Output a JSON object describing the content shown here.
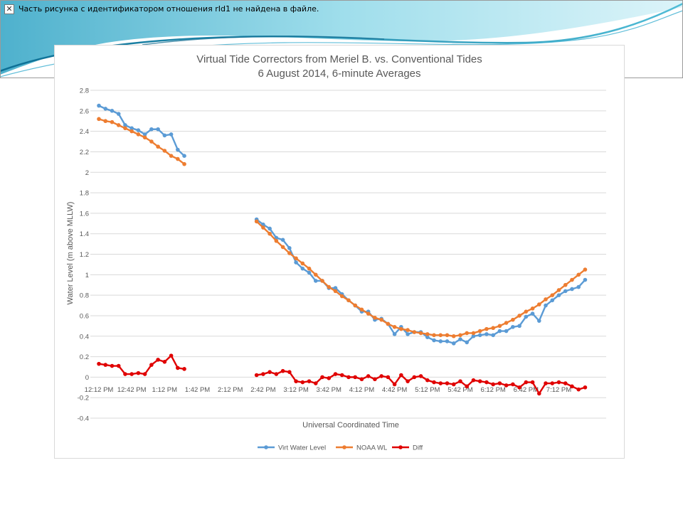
{
  "placeholder": {
    "icon": "broken-image-icon",
    "message": "Часть рисунка с идентификатором отношения rId1 не найдена в файле."
  },
  "colors": {
    "virt": "#5B9BD5",
    "noaa": "#ED7D31",
    "diff": "#E00000",
    "grid": "#d9d9d9",
    "text": "#595959"
  },
  "chart_data": {
    "type": "line",
    "title": "Virtual Tide Correctors from Meriel B. vs. Conventional Tides",
    "subtitle": "6 August 2014, 6-minute Averages",
    "xlabel": "Universal Coordinated Time",
    "ylabel": "Water Level (m above MLLW)",
    "ylim": [
      -0.4,
      2.8
    ],
    "yticks": [
      "2.8",
      "2.6",
      "2.4",
      "2.2",
      "2",
      "1.8",
      "1.6",
      "1.4",
      "1.2",
      "1",
      "0.8",
      "0.6",
      "0.4",
      "0.2",
      "0",
      "-0.2",
      "-0.4"
    ],
    "x_start": "12:12 PM",
    "x_step_minutes": 6,
    "x_tick_labels": [
      "12:12 PM",
      "12:42 PM",
      "1:12 PM",
      "1:42 PM",
      "2:12 PM",
      "2:42 PM",
      "3:12 PM",
      "3:42 PM",
      "4:12 PM",
      "4:42 PM",
      "5:12 PM",
      "5:42 PM",
      "6:12 PM",
      "6:42 PM",
      "7:12 PM"
    ],
    "grid": true,
    "legend_position": "bottom",
    "series": [
      {
        "name": "Virt Water Level",
        "values": [
          2.65,
          2.62,
          2.6,
          2.57,
          2.46,
          2.43,
          2.41,
          2.37,
          2.42,
          2.42,
          2.36,
          2.37,
          2.22,
          2.16,
          null,
          null,
          null,
          null,
          null,
          null,
          null,
          null,
          null,
          null,
          1.54,
          1.49,
          1.45,
          1.36,
          1.34,
          1.26,
          1.12,
          1.06,
          1.02,
          0.94,
          0.94,
          0.87,
          0.87,
          0.81,
          0.75,
          0.7,
          0.64,
          0.64,
          0.56,
          0.57,
          0.52,
          0.42,
          0.49,
          0.42,
          0.44,
          0.44,
          0.39,
          0.36,
          0.35,
          0.35,
          0.33,
          0.37,
          0.34,
          0.4,
          0.41,
          0.42,
          0.41,
          0.45,
          0.45,
          0.49,
          0.5,
          0.59,
          0.62,
          0.55,
          0.7,
          0.75,
          0.8,
          0.84,
          0.86,
          0.88,
          0.95
        ]
      },
      {
        "name": "NOAA WL",
        "values": [
          2.52,
          2.5,
          2.49,
          2.46,
          2.43,
          2.4,
          2.37,
          2.34,
          2.3,
          2.25,
          2.21,
          2.16,
          2.13,
          2.08,
          null,
          null,
          null,
          null,
          null,
          null,
          null,
          null,
          null,
          null,
          1.52,
          1.46,
          1.4,
          1.33,
          1.27,
          1.21,
          1.16,
          1.11,
          1.06,
          1.0,
          0.94,
          0.88,
          0.84,
          0.79,
          0.75,
          0.7,
          0.66,
          0.62,
          0.58,
          0.56,
          0.52,
          0.49,
          0.47,
          0.46,
          0.44,
          0.43,
          0.42,
          0.41,
          0.41,
          0.41,
          0.4,
          0.41,
          0.43,
          0.43,
          0.45,
          0.47,
          0.48,
          0.5,
          0.53,
          0.56,
          0.6,
          0.64,
          0.67,
          0.71,
          0.76,
          0.8,
          0.85,
          0.9,
          0.95,
          1.0,
          1.05
        ]
      },
      {
        "name": "Diff",
        "values": [
          0.13,
          0.12,
          0.11,
          0.11,
          0.03,
          0.03,
          0.04,
          0.03,
          0.12,
          0.17,
          0.15,
          0.21,
          0.09,
          0.08,
          null,
          null,
          null,
          null,
          null,
          null,
          null,
          null,
          null,
          null,
          0.02,
          0.03,
          0.05,
          0.03,
          0.06,
          0.05,
          -0.04,
          -0.05,
          -0.04,
          -0.06,
          0.0,
          -0.01,
          0.03,
          0.02,
          0.0,
          0.0,
          -0.02,
          0.01,
          -0.02,
          0.01,
          0.0,
          -0.07,
          0.02,
          -0.04,
          0.0,
          0.01,
          -0.03,
          -0.05,
          -0.06,
          -0.06,
          -0.07,
          -0.04,
          -0.09,
          -0.03,
          -0.04,
          -0.05,
          -0.07,
          -0.06,
          -0.08,
          -0.07,
          -0.1,
          -0.05,
          -0.05,
          -0.16,
          -0.06,
          -0.06,
          -0.05,
          -0.06,
          -0.09,
          -0.12,
          -0.1
        ]
      }
    ]
  }
}
